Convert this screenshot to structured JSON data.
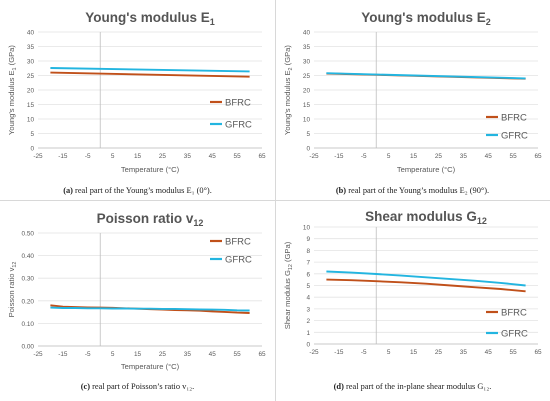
{
  "colors": {
    "bfrc": "#c0501a",
    "gfrc": "#23b5e0",
    "axis": "#bdbdbd",
    "text": "#595959"
  },
  "captions": [
    {
      "tag": "(a)",
      "text": " real part of the Young’s modulus E₁ (0°)."
    },
    {
      "tag": "(b)",
      "text": " real part of the Young’s modulus E₂ (90°)."
    },
    {
      "tag": "(c)",
      "text": " real part of Poisson’s ratio v₁₂."
    },
    {
      "tag": "(d)",
      "text": " real part of the in-plane shear modulus G₁₂."
    }
  ],
  "chart_data": [
    {
      "type": "line",
      "title": "Young's modulus E",
      "title_sub": "1",
      "xlabel": "Temperature (°C)",
      "ylabel": "Young's modulus E",
      "ylabel_sub": "1",
      "ylabel_unit": " (GPa)",
      "xlim": [
        -25,
        65
      ],
      "xticks": [
        -25,
        -15,
        -5,
        5,
        15,
        25,
        35,
        45,
        55,
        65
      ],
      "ylim": [
        0,
        40
      ],
      "yticks": [
        0,
        5,
        10,
        15,
        20,
        25,
        30,
        35,
        40
      ],
      "ydecimals": 0,
      "grid": true,
      "legend_position": "right",
      "series": [
        {
          "name": "BFRC",
          "color_key": "bfrc",
          "x": [
            -20,
            60
          ],
          "y": [
            26.0,
            24.6
          ]
        },
        {
          "name": "GFRC",
          "color_key": "gfrc",
          "x": [
            -20,
            60
          ],
          "y": [
            27.6,
            26.4
          ]
        }
      ]
    },
    {
      "type": "line",
      "title": "Young's modulus E",
      "title_sub": "2",
      "xlabel": "Temperature (°C)",
      "ylabel": "Young's modulus E",
      "ylabel_sub": "2",
      "ylabel_unit": " (GPa)",
      "xlim": [
        -25,
        65
      ],
      "xticks": [
        -25,
        -15,
        -5,
        5,
        15,
        25,
        35,
        45,
        55,
        65
      ],
      "ylim": [
        0,
        40
      ],
      "yticks": [
        0,
        5,
        10,
        15,
        20,
        25,
        30,
        35,
        40
      ],
      "ydecimals": 0,
      "grid": true,
      "legend_position": "right",
      "series": [
        {
          "name": "BFRC",
          "color_key": "bfrc",
          "x": [
            -20,
            60
          ],
          "y": [
            25.7,
            23.9
          ]
        },
        {
          "name": "GFRC",
          "color_key": "gfrc",
          "x": [
            -20,
            60
          ],
          "y": [
            25.8,
            24.0
          ]
        }
      ]
    },
    {
      "type": "line",
      "title": "Poisson ratio v",
      "title_sub": "12",
      "xlabel": "Temperature (°C)",
      "ylabel": "Poisson ratio v",
      "ylabel_sub": "12",
      "ylabel_unit": "",
      "xlim": [
        -25,
        65
      ],
      "xticks": [
        -25,
        -15,
        -5,
        5,
        15,
        25,
        35,
        45,
        55,
        65
      ],
      "ylim": [
        0,
        0.5
      ],
      "yticks": [
        0,
        0.1,
        0.2,
        0.3,
        0.4,
        0.5
      ],
      "ydecimals": 2,
      "grid": true,
      "legend_position": "top-right",
      "series": [
        {
          "name": "BFRC",
          "color_key": "bfrc",
          "x": [
            -20,
            -15,
            -10,
            -5,
            0,
            5,
            10,
            15,
            20,
            25,
            30,
            35,
            40,
            45,
            50,
            55,
            60
          ],
          "y": [
            0.18,
            0.174,
            0.172,
            0.171,
            0.17,
            0.169,
            0.167,
            0.165,
            0.163,
            0.161,
            0.159,
            0.158,
            0.156,
            0.153,
            0.151,
            0.148,
            0.146
          ]
        },
        {
          "name": "GFRC",
          "color_key": "gfrc",
          "x": [
            -20,
            -15,
            -10,
            -5,
            0,
            5,
            10,
            15,
            20,
            25,
            30,
            35,
            40,
            45,
            50,
            55,
            60
          ],
          "y": [
            0.17,
            0.168,
            0.168,
            0.167,
            0.167,
            0.166,
            0.166,
            0.165,
            0.165,
            0.164,
            0.164,
            0.163,
            0.162,
            0.161,
            0.16,
            0.158,
            0.157
          ]
        }
      ]
    },
    {
      "type": "line",
      "title": "Shear modulus G",
      "title_sub": "12",
      "xlabel": "Temperature (°C)",
      "ylabel": "Shear modulus G",
      "ylabel_sub": "12",
      "ylabel_unit": " (GPa)",
      "xlim": [
        -25,
        65
      ],
      "xticks": [
        -25,
        -15,
        -5,
        5,
        15,
        25,
        35,
        45,
        55,
        65
      ],
      "ylim": [
        0,
        10
      ],
      "yticks": [
        0,
        1,
        2,
        3,
        4,
        5,
        6,
        7,
        8,
        9,
        10
      ],
      "ydecimals": 0,
      "grid": true,
      "legend_position": "right",
      "series": [
        {
          "name": "BFRC",
          "color_key": "bfrc",
          "x": [
            -20,
            -10,
            0,
            10,
            20,
            30,
            40,
            50,
            60
          ],
          "y": [
            5.5,
            5.45,
            5.37,
            5.27,
            5.15,
            5.0,
            4.85,
            4.7,
            4.5
          ]
        },
        {
          "name": "GFRC",
          "color_key": "gfrc",
          "x": [
            -20,
            -10,
            0,
            10,
            20,
            30,
            40,
            50,
            60
          ],
          "y": [
            6.2,
            6.1,
            5.98,
            5.85,
            5.7,
            5.55,
            5.4,
            5.22,
            5.0
          ]
        }
      ]
    }
  ]
}
